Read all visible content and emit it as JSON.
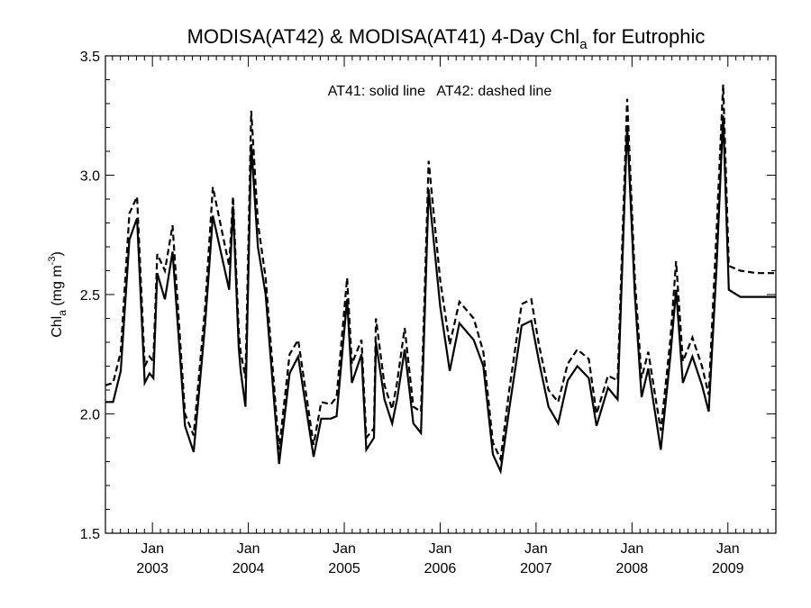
{
  "chart_data": {
    "type": "line",
    "title": {
      "prefix": "MODISA(AT42) & MODISA(AT41) 4-Day Chl",
      "subscript": "a",
      "suffix": " for Eutrophic"
    },
    "ylabel": {
      "base": "Chl",
      "subscript": "a",
      "units_prefix": " (mg m",
      "superscript": "-3",
      "units_suffix": ")"
    },
    "annotation": "AT41: solid line   AT42: dashed line",
    "ylim": [
      1.5,
      3.5
    ],
    "yticks": [
      "1.5",
      "2.0",
      "2.5",
      "3.0",
      "3.5"
    ],
    "xlim": [
      2002.51,
      2009.5
    ],
    "xticks": [
      {
        "x": 2003.0,
        "month": "Jan",
        "year": "2003"
      },
      {
        "x": 2004.0,
        "month": "Jan",
        "year": "2004"
      },
      {
        "x": 2005.0,
        "month": "Jan",
        "year": "2005"
      },
      {
        "x": 2006.0,
        "month": "Jan",
        "year": "2006"
      },
      {
        "x": 2007.0,
        "month": "Jan",
        "year": "2007"
      },
      {
        "x": 2008.0,
        "month": "Jan",
        "year": "2008"
      },
      {
        "x": 2009.0,
        "month": "Jan",
        "year": "2009"
      }
    ],
    "grid": false,
    "legend": "none",
    "series": [
      {
        "name": "AT41",
        "style": "solid",
        "color": "#000000",
        "x": [
          2002.51,
          2002.59,
          2002.67,
          2002.76,
          2002.84,
          2002.92,
          2002.97,
          2003.01,
          2003.05,
          2003.13,
          2003.21,
          2003.34,
          2003.43,
          2003.55,
          2003.63,
          2003.8,
          2003.84,
          2003.9,
          2003.92,
          2003.97,
          2004.03,
          2004.1,
          2004.18,
          2004.32,
          2004.43,
          2004.52,
          2004.68,
          2004.76,
          2004.86,
          2004.92,
          2005.03,
          2005.08,
          2005.18,
          2005.23,
          2005.31,
          2005.33,
          2005.42,
          2005.5,
          2005.55,
          2005.63,
          2005.72,
          2005.8,
          2005.88,
          2006.0,
          2006.1,
          2006.2,
          2006.35,
          2006.45,
          2006.55,
          2006.63,
          2006.72,
          2006.85,
          2006.95,
          2007.03,
          2007.13,
          2007.23,
          2007.33,
          2007.43,
          2007.55,
          2007.63,
          2007.75,
          2007.85,
          2007.95,
          2008.03,
          2008.1,
          2008.17,
          2008.3,
          2008.4,
          2008.46,
          2008.53,
          2008.63,
          2008.73,
          2008.8,
          2008.88,
          2008.95,
          2009.01,
          2009.13,
          2009.3,
          2009.36,
          2009.42,
          2009.5
        ],
        "y": [
          2.05,
          2.05,
          2.18,
          2.73,
          2.82,
          2.13,
          2.17,
          2.15,
          2.59,
          2.48,
          2.68,
          1.95,
          1.84,
          2.38,
          2.83,
          2.52,
          2.87,
          2.28,
          2.18,
          2.03,
          3.13,
          2.7,
          2.5,
          1.79,
          2.17,
          2.24,
          1.82,
          1.98,
          1.98,
          1.99,
          2.48,
          2.13,
          2.25,
          1.85,
          1.9,
          2.3,
          2.06,
          1.96,
          2.06,
          2.27,
          1.96,
          1.92,
          2.94,
          2.45,
          2.18,
          2.38,
          2.31,
          2.2,
          1.83,
          1.76,
          2.02,
          2.37,
          2.39,
          2.22,
          2.03,
          1.96,
          2.14,
          2.2,
          2.15,
          1.95,
          2.11,
          2.06,
          3.21,
          2.5,
          2.07,
          2.19,
          1.85,
          2.24,
          2.52,
          2.13,
          2.24,
          2.12,
          2.01,
          2.6,
          3.25,
          2.52,
          2.49,
          2.49,
          2.49,
          2.49,
          2.49
        ]
      },
      {
        "name": "AT42",
        "style": "dashed",
        "color": "#000000",
        "x": [
          2002.51,
          2002.59,
          2002.67,
          2002.76,
          2002.84,
          2002.92,
          2002.97,
          2003.01,
          2003.05,
          2003.13,
          2003.21,
          2003.34,
          2003.43,
          2003.55,
          2003.63,
          2003.8,
          2003.84,
          2003.9,
          2003.92,
          2003.97,
          2004.03,
          2004.1,
          2004.18,
          2004.32,
          2004.43,
          2004.52,
          2004.68,
          2004.76,
          2004.86,
          2004.92,
          2005.03,
          2005.08,
          2005.18,
          2005.23,
          2005.31,
          2005.33,
          2005.42,
          2005.5,
          2005.55,
          2005.63,
          2005.72,
          2005.8,
          2005.88,
          2006.0,
          2006.1,
          2006.2,
          2006.35,
          2006.45,
          2006.55,
          2006.63,
          2006.72,
          2006.85,
          2006.95,
          2007.03,
          2007.13,
          2007.23,
          2007.33,
          2007.43,
          2007.55,
          2007.63,
          2007.75,
          2007.85,
          2007.95,
          2008.03,
          2008.1,
          2008.17,
          2008.3,
          2008.4,
          2008.46,
          2008.53,
          2008.63,
          2008.73,
          2008.8,
          2008.88,
          2008.95,
          2009.01,
          2009.13,
          2009.3,
          2009.36,
          2009.42,
          2009.5
        ],
        "y": [
          2.12,
          2.13,
          2.26,
          2.84,
          2.91,
          2.2,
          2.24,
          2.22,
          2.67,
          2.6,
          2.79,
          2.0,
          1.91,
          2.45,
          2.95,
          2.62,
          2.91,
          2.35,
          2.26,
          2.15,
          3.27,
          2.8,
          2.57,
          1.85,
          2.25,
          2.31,
          1.87,
          2.05,
          2.04,
          2.07,
          2.57,
          2.21,
          2.31,
          1.9,
          1.94,
          2.4,
          2.12,
          2.02,
          2.13,
          2.36,
          2.03,
          2.01,
          3.06,
          2.56,
          2.29,
          2.47,
          2.4,
          2.26,
          1.88,
          1.81,
          2.1,
          2.46,
          2.48,
          2.29,
          2.1,
          2.05,
          2.21,
          2.27,
          2.23,
          2.0,
          2.16,
          2.14,
          3.32,
          2.57,
          2.15,
          2.26,
          1.93,
          2.31,
          2.64,
          2.22,
          2.32,
          2.2,
          2.08,
          2.75,
          3.38,
          2.62,
          2.6,
          2.59,
          2.59,
          2.59,
          2.59
        ]
      }
    ]
  }
}
